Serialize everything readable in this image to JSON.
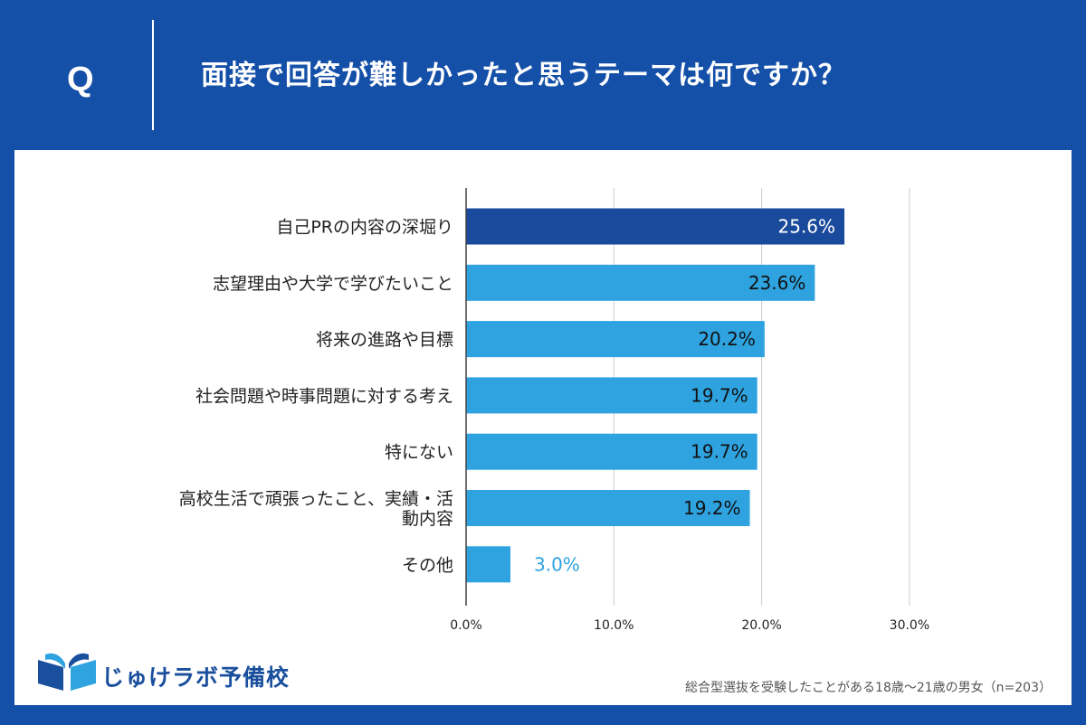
{
  "header": {
    "q_mark": "Q",
    "question": "面接で回答が難しかったと思うテーマは何ですか？"
  },
  "brand": {
    "name": "じゅけラボ予備校"
  },
  "footnote": "総合型選抜を受験したことがある18歳～21歳の男女（n=203）",
  "colors": {
    "background": "#1550a8",
    "bar_highlight": "#1a4a9c",
    "bar_default": "#2ea3e0",
    "gridline": "#cccccc",
    "axis": "#444444"
  },
  "chart_data": {
    "type": "bar",
    "orientation": "horizontal",
    "title": "面接で回答が難しかったと思うテーマは何ですか？",
    "categories": [
      [
        "自己PRの内容の深堀り"
      ],
      [
        "志望理由や大学で学びたいこと"
      ],
      [
        "将来の進路や目標"
      ],
      [
        "社会問題や時事問題に対する考え"
      ],
      [
        "特にない"
      ],
      [
        "高校生活で頑張ったこと、実績・活",
        "動内容"
      ],
      [
        "その他"
      ]
    ],
    "values": [
      25.6,
      23.6,
      20.2,
      19.7,
      19.7,
      19.2,
      3.0
    ],
    "value_labels": [
      "25.6%",
      "23.6%",
      "20.2%",
      "19.7%",
      "19.7%",
      "19.2%",
      "3.0%"
    ],
    "highlight_index": 0,
    "xlim": [
      0,
      30
    ],
    "xticks": [
      0,
      10,
      20,
      30
    ],
    "xtick_labels": [
      "0.0%",
      "10.0%",
      "20.0%",
      "30.0%"
    ],
    "xlabel": "",
    "ylabel": "",
    "unit": "%",
    "grid": true
  }
}
